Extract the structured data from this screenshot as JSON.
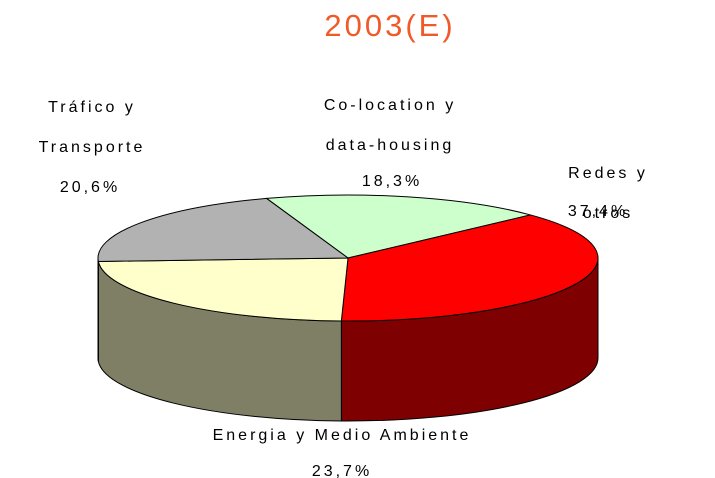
{
  "chart_data": {
    "type": "pie3d",
    "title": "2003(E)",
    "categories": [
      "Co-location y\ndata-housing",
      "Redes y otros",
      "Energia y Medio Ambiente",
      "Tráfico y\nTransporte"
    ],
    "values": [
      18.3,
      37.4,
      23.7,
      20.6
    ],
    "value_labels": [
      "18,3%",
      "37,4%",
      "23,7%",
      "20,6%"
    ],
    "colors": [
      "#ccffcc",
      "#ff0000",
      "#ffffcc",
      "#b2b2b2"
    ]
  }
}
